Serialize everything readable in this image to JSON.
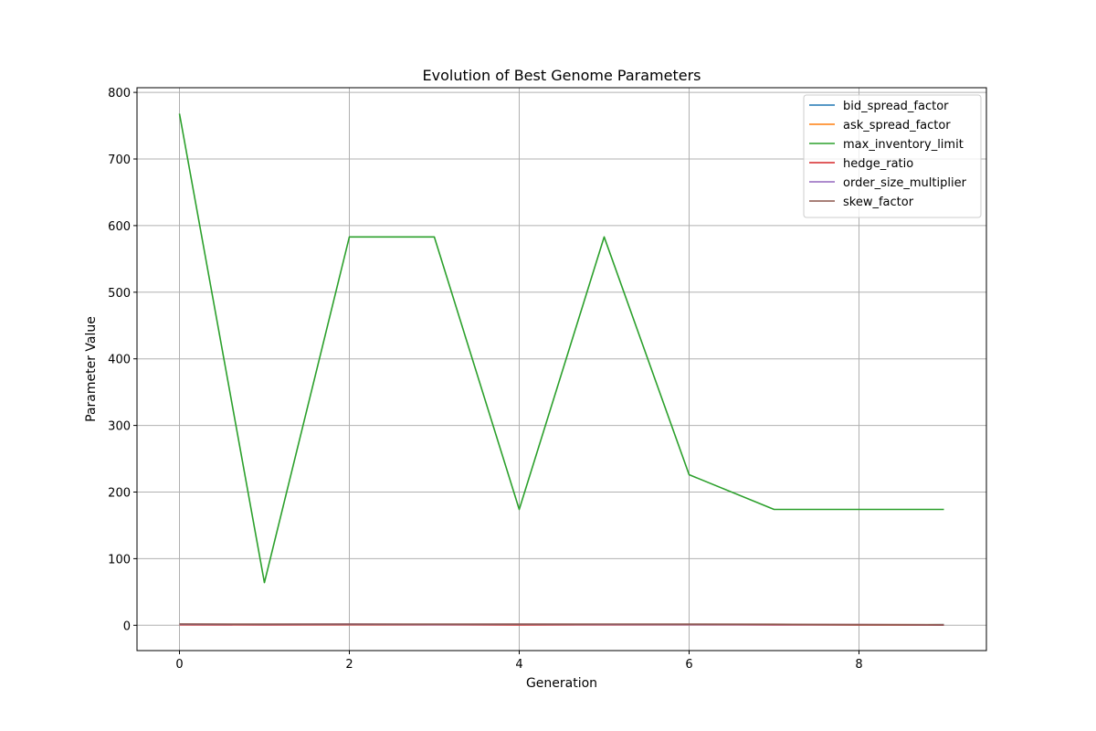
{
  "chart_data": {
    "type": "line",
    "title": "Evolution of Best Genome Parameters",
    "xlabel": "Generation",
    "ylabel": "Parameter Value",
    "xlim": [
      -0.5,
      9.5
    ],
    "ylim": [
      -38,
      807
    ],
    "xticks": [
      0,
      2,
      4,
      6,
      8
    ],
    "yticks": [
      0,
      100,
      200,
      300,
      400,
      500,
      600,
      700,
      800
    ],
    "grid": true,
    "legend_position": "top-right",
    "x": [
      0,
      1,
      2,
      3,
      4,
      5,
      6,
      7,
      8,
      9
    ],
    "series": [
      {
        "name": "bid_spread_factor",
        "color": "#1f77b4",
        "values": [
          1.2,
          1.1,
          1.3,
          1.0,
          1.2,
          1.1,
          0.9,
          1.0,
          0.8,
          0.9
        ]
      },
      {
        "name": "ask_spread_factor",
        "color": "#ff7f0e",
        "values": [
          1.3,
          1.2,
          1.1,
          1.2,
          1.0,
          1.1,
          1.2,
          1.0,
          0.9,
          0.8
        ]
      },
      {
        "name": "max_inventory_limit",
        "color": "#2ca02c",
        "values": [
          768,
          64,
          583,
          583,
          174,
          583,
          226,
          174,
          174,
          174
        ]
      },
      {
        "name": "hedge_ratio",
        "color": "#d62728",
        "values": [
          0.8,
          0.7,
          0.9,
          0.8,
          0.7,
          0.8,
          0.9,
          0.7,
          0.5,
          0.5
        ]
      },
      {
        "name": "order_size_multiplier",
        "color": "#9467bd",
        "values": [
          1.5,
          1.4,
          1.6,
          1.3,
          1.5,
          1.4,
          1.3,
          1.2,
          0.9,
          0.6
        ]
      },
      {
        "name": "skew_factor",
        "color": "#8c564b",
        "values": [
          1.9,
          1.7,
          1.8,
          1.6,
          1.7,
          1.8,
          1.6,
          1.5,
          0.8,
          0.6
        ]
      }
    ]
  }
}
